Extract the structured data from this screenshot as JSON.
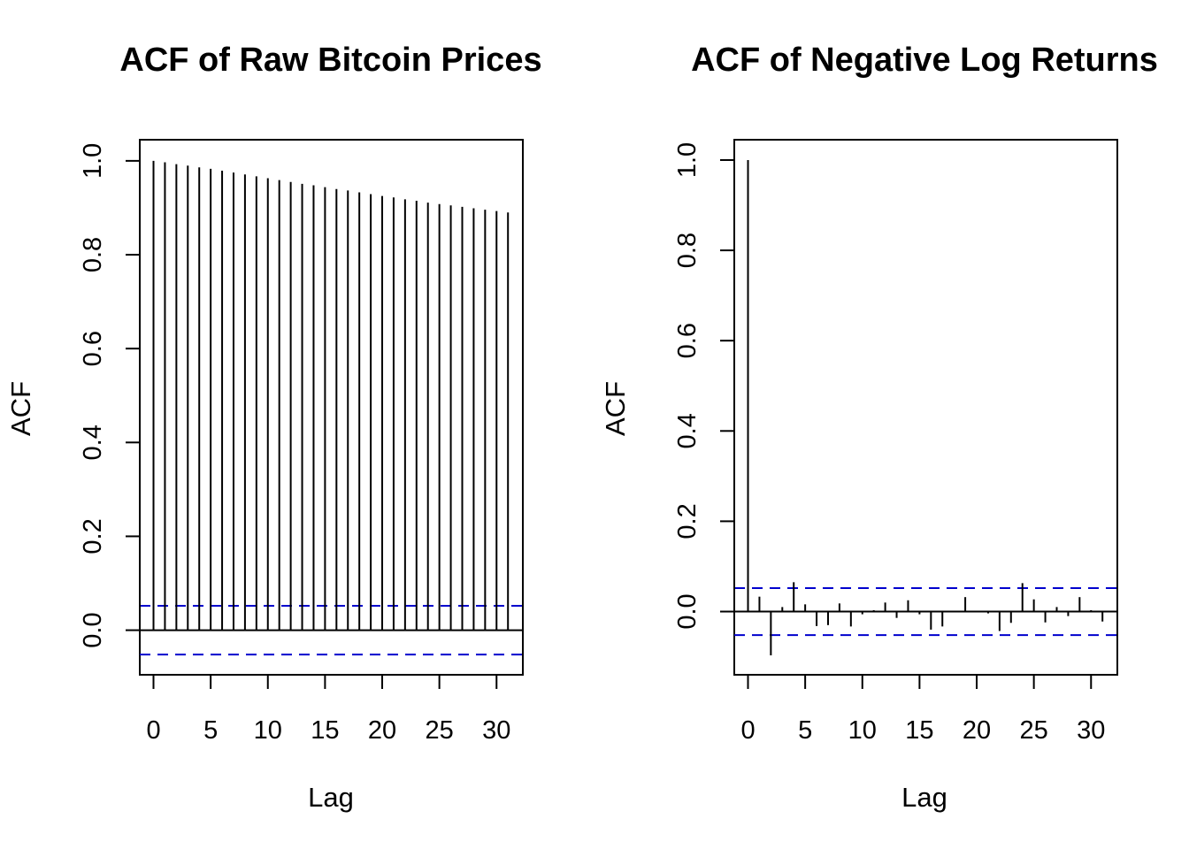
{
  "chart_data": [
    {
      "type": "bar",
      "title": "ACF of Raw Bitcoin Prices",
      "xlabel": "Lag",
      "ylabel": "ACF",
      "x": [
        0,
        1,
        2,
        3,
        4,
        5,
        6,
        7,
        8,
        9,
        10,
        11,
        12,
        13,
        14,
        15,
        16,
        17,
        18,
        19,
        20,
        21,
        22,
        23,
        24,
        25,
        26,
        27,
        28,
        29,
        30,
        31
      ],
      "values": [
        1.0,
        0.997,
        0.993,
        0.99,
        0.986,
        0.983,
        0.979,
        0.975,
        0.971,
        0.967,
        0.963,
        0.959,
        0.955,
        0.951,
        0.948,
        0.944,
        0.94,
        0.937,
        0.933,
        0.929,
        0.925,
        0.922,
        0.918,
        0.915,
        0.911,
        0.908,
        0.905,
        0.902,
        0.899,
        0.896,
        0.893,
        0.89
      ],
      "ci": 0.052,
      "xlim": [
        -1.2,
        32.3
      ],
      "ylim": [
        -0.095,
        1.045
      ],
      "xticks": [
        "0",
        "5",
        "10",
        "15",
        "20",
        "25",
        "30"
      ],
      "yticks": [
        "0.0",
        "0.2",
        "0.4",
        "0.6",
        "0.8",
        "1.0"
      ],
      "ci_color": "#0000cd",
      "grid": false
    },
    {
      "type": "bar",
      "title": "ACF of Negative Log Returns",
      "xlabel": "Lag",
      "ylabel": "ACF",
      "x": [
        0,
        1,
        2,
        3,
        4,
        5,
        6,
        7,
        8,
        9,
        10,
        11,
        12,
        13,
        14,
        15,
        16,
        17,
        18,
        19,
        20,
        21,
        22,
        23,
        24,
        25,
        26,
        27,
        28,
        29,
        30,
        31
      ],
      "values": [
        1.0,
        0.033,
        -0.097,
        0.01,
        0.065,
        0.016,
        -0.032,
        -0.03,
        0.018,
        -0.033,
        -0.006,
        0.003,
        0.02,
        -0.014,
        0.025,
        -0.006,
        -0.04,
        -0.033,
        0.001,
        0.032,
        0.002,
        -0.004,
        -0.043,
        -0.025,
        0.063,
        0.027,
        -0.024,
        0.01,
        -0.01,
        0.032,
        0.003,
        -0.022
      ],
      "ci": 0.052,
      "xlim": [
        -1.2,
        32.3
      ],
      "ylim": [
        -0.14,
        1.045
      ],
      "xticks": [
        "0",
        "5",
        "10",
        "15",
        "20",
        "25",
        "30"
      ],
      "yticks": [
        "0.0",
        "0.2",
        "0.4",
        "0.6",
        "0.8",
        "1.0"
      ],
      "ci_color": "#0000cd",
      "grid": false
    }
  ]
}
